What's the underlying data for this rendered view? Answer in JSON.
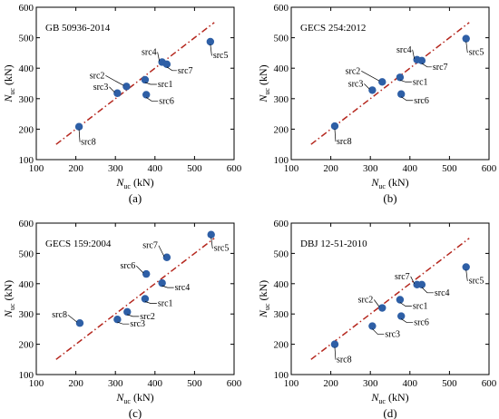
{
  "chart_data": [
    {
      "type": "scatter",
      "panel_label": "(a)",
      "inset_title": "GB 50936-2014",
      "xlabel_main": "N",
      "xlabel_sub": "uc",
      "xlabel_unit": " (kN)",
      "ylabel_main": "N",
      "ylabel_sub": "uc",
      "ylabel_unit": " (kN)",
      "xlim": [
        100,
        600
      ],
      "ylim": [
        100,
        600
      ],
      "xticks": [
        "100",
        "200",
        "300",
        "400",
        "500",
        "600"
      ],
      "yticks": [
        "100",
        "200",
        "300",
        "400",
        "500",
        "600"
      ],
      "reference_line": [
        [
          150,
          150
        ],
        [
          550,
          550
        ]
      ],
      "points": [
        {
          "label": "src1",
          "x": 375,
          "y": 362
        },
        {
          "label": "src2",
          "x": 328,
          "y": 340
        },
        {
          "label": "src3",
          "x": 305,
          "y": 318
        },
        {
          "label": "src4",
          "x": 418,
          "y": 420
        },
        {
          "label": "src5",
          "x": 540,
          "y": 487
        },
        {
          "label": "src6",
          "x": 378,
          "y": 313
        },
        {
          "label": "src7",
          "x": 430,
          "y": 413
        },
        {
          "label": "src8",
          "x": 208,
          "y": 208
        }
      ]
    },
    {
      "type": "scatter",
      "panel_label": "(b)",
      "inset_title": "GECS 254:2012",
      "xlabel_main": "N",
      "xlabel_sub": "uc",
      "xlabel_unit": " (kN)",
      "ylabel_main": "N",
      "ylabel_sub": "uc",
      "ylabel_unit": " (kN)",
      "xlim": [
        100,
        600
      ],
      "ylim": [
        100,
        600
      ],
      "xticks": [
        "100",
        "200",
        "300",
        "400",
        "500",
        "600"
      ],
      "yticks": [
        "100",
        "200",
        "300",
        "400",
        "500",
        "600"
      ],
      "reference_line": [
        [
          150,
          150
        ],
        [
          550,
          550
        ]
      ],
      "points": [
        {
          "label": "src1",
          "x": 375,
          "y": 370
        },
        {
          "label": "src2",
          "x": 330,
          "y": 355
        },
        {
          "label": "src3",
          "x": 305,
          "y": 328
        },
        {
          "label": "src4",
          "x": 418,
          "y": 428
        },
        {
          "label": "src5",
          "x": 542,
          "y": 497
        },
        {
          "label": "src6",
          "x": 378,
          "y": 315
        },
        {
          "label": "src7",
          "x": 430,
          "y": 425
        },
        {
          "label": "src8",
          "x": 210,
          "y": 210
        }
      ]
    },
    {
      "type": "scatter",
      "panel_label": "(c)",
      "inset_title": "GECS 159:2004",
      "xlabel_main": "N",
      "xlabel_sub": "uc",
      "xlabel_unit": " (kN)",
      "ylabel_main": "N",
      "ylabel_sub": "uc",
      "ylabel_unit": " (kN)",
      "xlim": [
        100,
        600
      ],
      "ylim": [
        100,
        600
      ],
      "xticks": [
        "100",
        "200",
        "300",
        "400",
        "500",
        "600"
      ],
      "yticks": [
        "100",
        "200",
        "300",
        "400",
        "500",
        "600"
      ],
      "reference_line": [
        [
          150,
          150
        ],
        [
          550,
          550
        ]
      ],
      "points": [
        {
          "label": "src1",
          "x": 375,
          "y": 350
        },
        {
          "label": "src2",
          "x": 330,
          "y": 307
        },
        {
          "label": "src3",
          "x": 305,
          "y": 282
        },
        {
          "label": "src4",
          "x": 418,
          "y": 402
        },
        {
          "label": "src5",
          "x": 542,
          "y": 562
        },
        {
          "label": "src6",
          "x": 378,
          "y": 432
        },
        {
          "label": "src7",
          "x": 430,
          "y": 487
        },
        {
          "label": "src8",
          "x": 210,
          "y": 270
        }
      ]
    },
    {
      "type": "scatter",
      "panel_label": "(d)",
      "inset_title": "DBJ 12-51-2010",
      "xlabel_main": "N",
      "xlabel_sub": "uc",
      "xlabel_unit": " (kN)",
      "ylabel_main": "N",
      "ylabel_sub": "uc",
      "ylabel_unit": " (kN)",
      "xlim": [
        100,
        600
      ],
      "ylim": [
        100,
        600
      ],
      "xticks": [
        "100",
        "200",
        "300",
        "400",
        "500",
        "600"
      ],
      "yticks": [
        "100",
        "200",
        "300",
        "400",
        "500",
        "600"
      ],
      "reference_line": [
        [
          150,
          150
        ],
        [
          550,
          550
        ]
      ],
      "points": [
        {
          "label": "src1",
          "x": 375,
          "y": 347
        },
        {
          "label": "src2",
          "x": 330,
          "y": 320
        },
        {
          "label": "src3",
          "x": 305,
          "y": 260
        },
        {
          "label": "src4",
          "x": 430,
          "y": 397
        },
        {
          "label": "src5",
          "x": 542,
          "y": 455
        },
        {
          "label": "src6",
          "x": 378,
          "y": 293
        },
        {
          "label": "src7",
          "x": 418,
          "y": 397
        },
        {
          "label": "src8",
          "x": 210,
          "y": 200
        }
      ]
    }
  ],
  "colors": {
    "point": "#2e5fa6",
    "reference_line": "#b5271e",
    "axis": "#000000",
    "tick_text": "#000000"
  }
}
